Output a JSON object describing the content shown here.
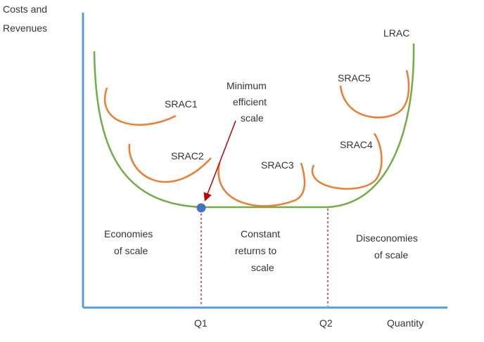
{
  "axes": {
    "y_label_line1": "Costs and",
    "y_label_line2": "Revenues",
    "x_label": "Quantity",
    "q1_label": "Q1",
    "q2_label": "Q2"
  },
  "curves": {
    "lrac": "LRAC",
    "srac1": "SRAC1",
    "srac2": "SRAC2",
    "srac3": "SRAC3",
    "srac4": "SRAC4",
    "srac5": "SRAC5"
  },
  "annotation": {
    "line1": "Minimum",
    "line2": "efficient",
    "line3": "scale"
  },
  "regions": {
    "economies": [
      "Economies",
      "of scale"
    ],
    "constant": [
      "Constant",
      "returns to",
      "scale"
    ],
    "diseconomies": [
      "Diseconomies",
      "of scale"
    ]
  },
  "colors": {
    "axis": "#5b9bd5",
    "lrac": "#70ad47",
    "srac": "#ed7d31",
    "arrow": "#c00000",
    "dashed": "#c00000",
    "point": "#4472c4",
    "text": "#333333"
  }
}
